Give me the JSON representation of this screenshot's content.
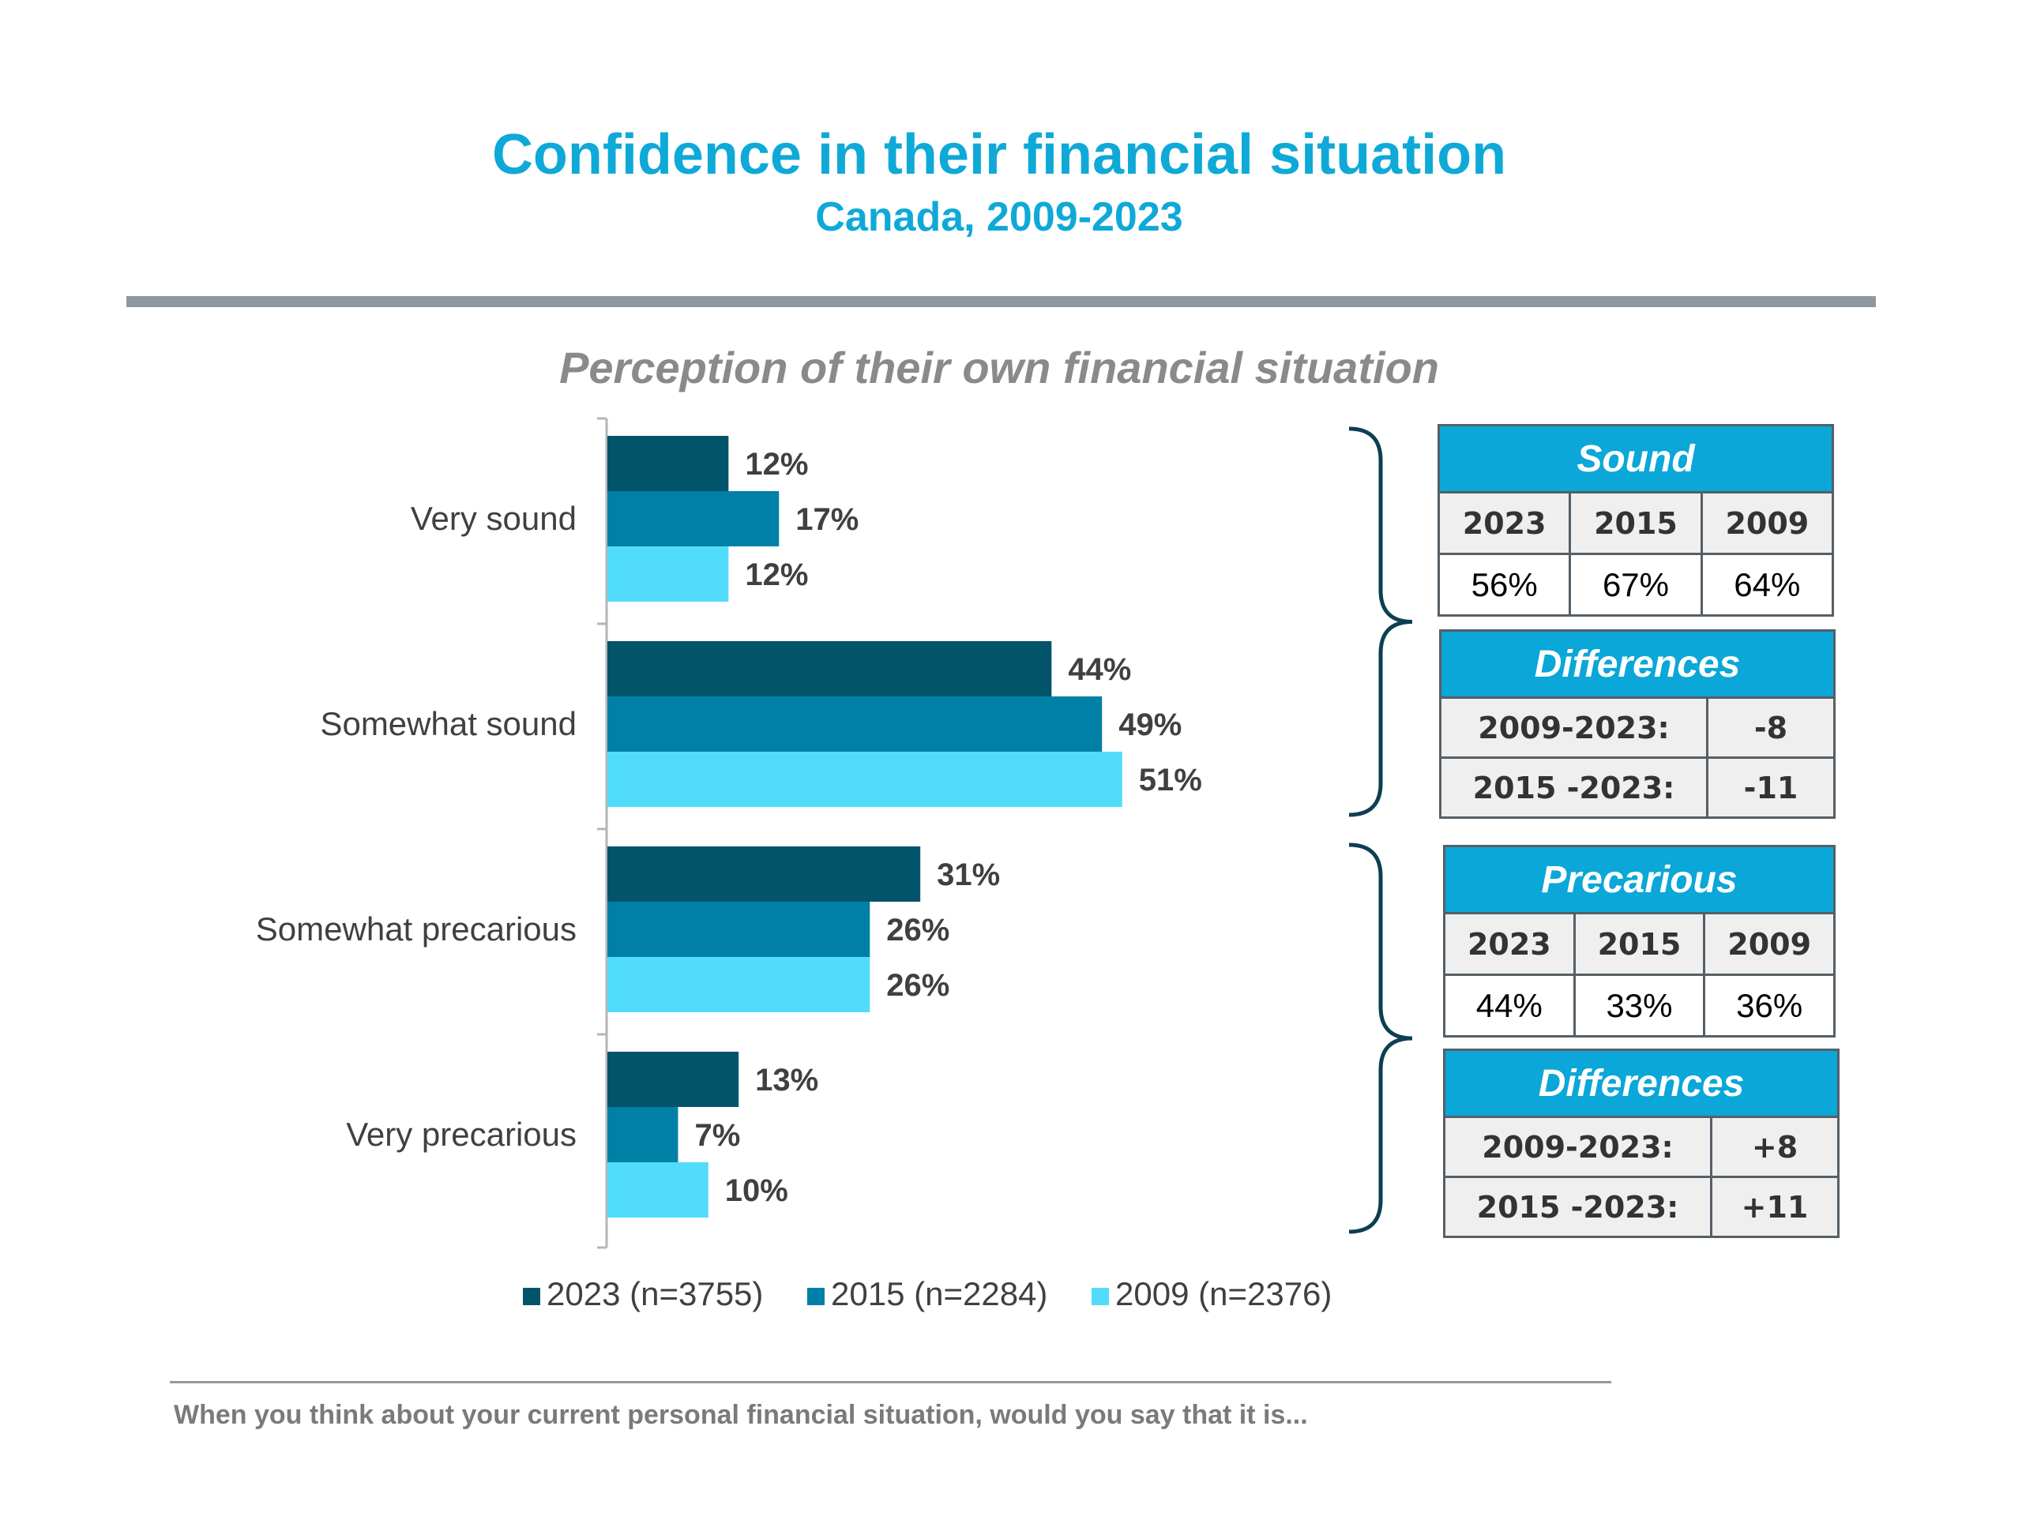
{
  "header": {
    "title": "Confidence in their financial situation",
    "subtitle": "Canada, 2009-2023"
  },
  "chart_data": {
    "type": "bar",
    "orientation": "horizontal",
    "title": "Perception of their own financial situation",
    "categories": [
      "Very sound",
      "Somewhat sound",
      "Somewhat precarious",
      "Very precarious"
    ],
    "series": [
      {
        "name": "2023 (n=3755)",
        "color": "#02546b",
        "values": [
          12,
          44,
          31,
          13
        ],
        "labels": [
          "12%",
          "44%",
          "31%",
          "13%"
        ]
      },
      {
        "name": "2015 (n=2284)",
        "color": "#0080a6",
        "values": [
          17,
          49,
          26,
          7
        ],
        "labels": [
          "17%",
          "49%",
          "26%",
          "7%"
        ]
      },
      {
        "name": "2009 (n=2376)",
        "color": "#52dcfc",
        "values": [
          12,
          51,
          26,
          10
        ],
        "labels": [
          "12%",
          "51%",
          "26%",
          "10%"
        ]
      }
    ],
    "xlim": [
      0,
      60
    ],
    "grid": false,
    "legend_position": "bottom"
  },
  "tables": {
    "sound": {
      "title": "Sound",
      "years": [
        "2023",
        "2015",
        "2009"
      ],
      "values": [
        "56%",
        "67%",
        "64%"
      ]
    },
    "sound_diff": {
      "title": "Differences",
      "rows": [
        {
          "label": "2009-2023:",
          "value": "-8"
        },
        {
          "label": "2015 -2023:",
          "value": "-11"
        }
      ]
    },
    "precarious": {
      "title": "Precarious",
      "years": [
        "2023",
        "2015",
        "2009"
      ],
      "values": [
        "44%",
        "33%",
        "36%"
      ]
    },
    "precarious_diff": {
      "title": "Differences",
      "rows": [
        {
          "label": "2009-2023:",
          "value": "+8"
        },
        {
          "label": "2015 -2023:",
          "value": "+11"
        }
      ]
    }
  },
  "brace_color": "#0d3f52",
  "footnote": "When you think about your current personal financial situation, would you say that it is..."
}
